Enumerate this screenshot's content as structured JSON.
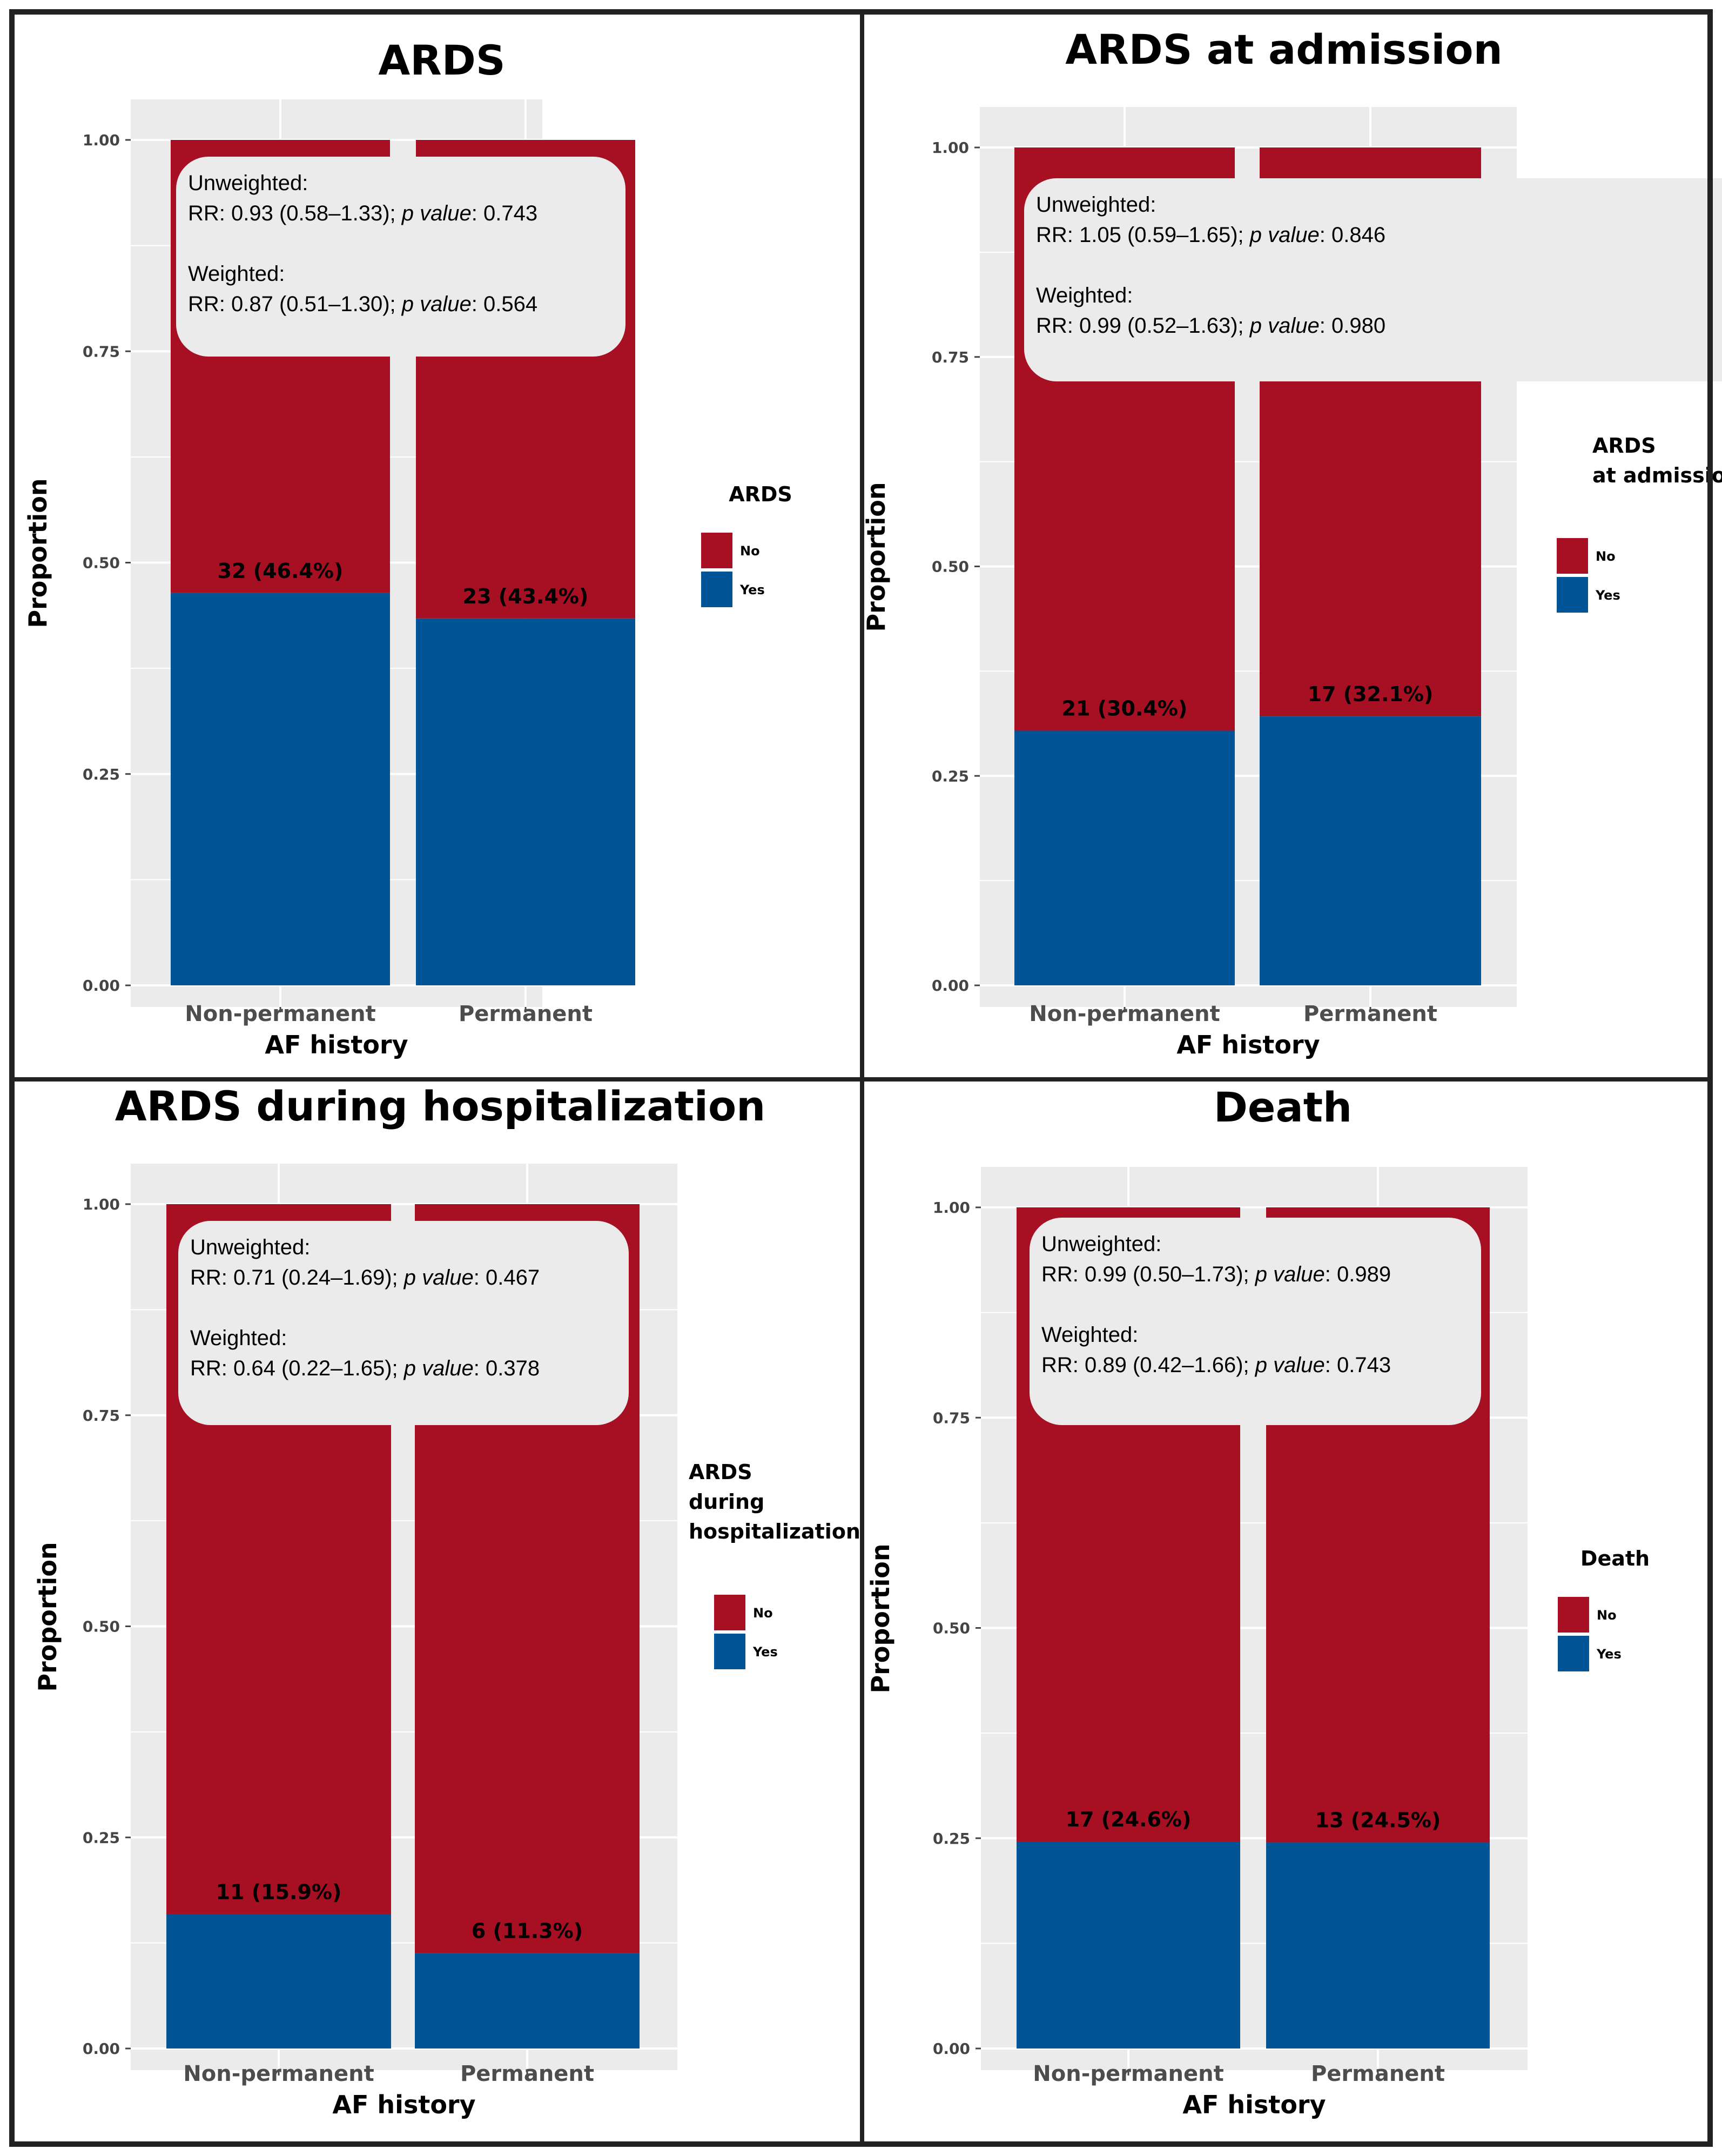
{
  "chart_data": [
    {
      "type": "bar",
      "stacked": true,
      "title": "ARDS",
      "xlabel": "AF history",
      "ylabel": "Proportion",
      "ylim": [
        0,
        1
      ],
      "yticks": [
        "0.00",
        "0.25",
        "0.50",
        "0.75",
        "1.00"
      ],
      "categories": [
        "Non-permanent",
        "Permanent"
      ],
      "series": [
        {
          "name": "No",
          "values": [
            0.536,
            0.566
          ]
        },
        {
          "name": "Yes",
          "values": [
            0.464,
            0.434
          ]
        }
      ],
      "bar_labels": [
        "32 (46.4%)",
        "23 (43.4%)"
      ],
      "legend": {
        "title_lines": [
          "ARDS"
        ],
        "items": [
          "No",
          "Yes"
        ]
      },
      "annotation": {
        "unweighted_heading": "Unweighted:",
        "unweighted_rr": "RR: 0.93 (0.58–1.33);",
        "unweighted_p": "0.743",
        "weighted_heading": "Weighted:",
        "weighted_rr": "RR: 0.87 (0.51–1.30);",
        "weighted_p": "0.564",
        "p_label": "p value",
        "p_sep": ": "
      }
    },
    {
      "type": "bar",
      "stacked": true,
      "title": "ARDS at admission",
      "xlabel": "AF history",
      "ylabel": "Proportion",
      "ylim": [
        0,
        1
      ],
      "yticks": [
        "0.00",
        "0.25",
        "0.50",
        "0.75",
        "1.00"
      ],
      "categories": [
        "Non-permanent",
        "Permanent"
      ],
      "series": [
        {
          "name": "No",
          "values": [
            0.696,
            0.679
          ]
        },
        {
          "name": "Yes",
          "values": [
            0.304,
            0.321
          ]
        }
      ],
      "bar_labels": [
        "21 (30.4%)",
        "17 (32.1%)"
      ],
      "legend": {
        "title_lines": [
          "ARDS",
          "at admission"
        ],
        "items": [
          "No",
          "Yes"
        ]
      },
      "annotation": {
        "unweighted_heading": "Unweighted:",
        "unweighted_rr": "RR: 1.05 (0.59–1.65);",
        "unweighted_p": "0.846",
        "weighted_heading": "Weighted:",
        "weighted_rr": "RR: 0.99 (0.52–1.63);",
        "weighted_p": "0.980",
        "p_label": "p value",
        "p_sep": ": "
      }
    },
    {
      "type": "bar",
      "stacked": true,
      "title": "ARDS during hospitalization",
      "xlabel": "AF history",
      "ylabel": "Proportion",
      "ylim": [
        0,
        1
      ],
      "yticks": [
        "0.00",
        "0.25",
        "0.50",
        "0.75",
        "1.00"
      ],
      "categories": [
        "Non-permanent",
        "Permanent"
      ],
      "series": [
        {
          "name": "No",
          "values": [
            0.841,
            0.887
          ]
        },
        {
          "name": "Yes",
          "values": [
            0.159,
            0.113
          ]
        }
      ],
      "bar_labels": [
        "11 (15.9%)",
        "6 (11.3%)"
      ],
      "legend": {
        "title_lines": [
          "ARDS",
          "during",
          "hospitalization"
        ],
        "items": [
          "No",
          "Yes"
        ]
      },
      "annotation": {
        "unweighted_heading": "Unweighted:",
        "unweighted_rr": "RR: 0.71 (0.24–1.69);",
        "unweighted_p": "0.467",
        "weighted_heading": "Weighted:",
        "weighted_rr": "RR: 0.64 (0.22–1.65);",
        "weighted_p": "0.378",
        "p_label": "p value",
        "p_sep": ": "
      }
    },
    {
      "type": "bar",
      "stacked": true,
      "title": "Death",
      "xlabel": "AF history",
      "ylabel": "Proportion",
      "ylim": [
        0,
        1
      ],
      "yticks": [
        "0.00",
        "0.25",
        "0.50",
        "0.75",
        "1.00"
      ],
      "categories": [
        "Non-permanent",
        "Permanent"
      ],
      "series": [
        {
          "name": "No",
          "values": [
            0.754,
            0.755
          ]
        },
        {
          "name": "Yes",
          "values": [
            0.246,
            0.245
          ]
        }
      ],
      "bar_labels": [
        "17 (24.6%)",
        "13 (24.5%)"
      ],
      "legend": {
        "title_lines": [
          "Death"
        ],
        "items": [
          "No",
          "Yes"
        ]
      },
      "annotation": {
        "unweighted_heading": "Unweighted:",
        "unweighted_rr": "RR: 0.99 (0.50–1.73);",
        "unweighted_p": "0.989",
        "weighted_heading": "Weighted:",
        "weighted_rr": "RR: 0.89 (0.42–1.66);",
        "weighted_p": "0.743",
        "p_label": "p value",
        "p_sep": ": "
      }
    }
  ],
  "colors": {
    "no": "#a70f23",
    "yes": "#015496",
    "panel_bg": "#ebebeb",
    "grid": "#ffffff",
    "annotation_bg": "#ebebeb",
    "border": "#222222"
  }
}
